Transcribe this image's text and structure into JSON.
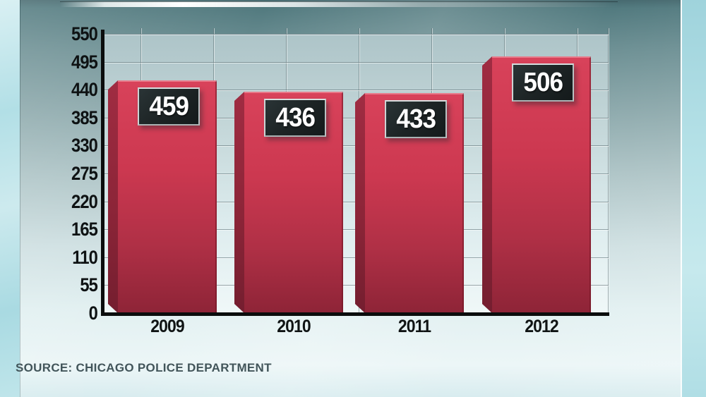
{
  "chart_data": {
    "type": "bar",
    "title": "",
    "categories": [
      "2009",
      "2010",
      "2011",
      "2012"
    ],
    "values": [
      459,
      436,
      433,
      506
    ],
    "bar_value_labels": [
      "459",
      "436",
      "433",
      "506"
    ],
    "xlabel": "",
    "ylabel": "",
    "ylim": [
      0,
      550
    ],
    "yticks": [
      0,
      55,
      110,
      165,
      220,
      275,
      330,
      385,
      440,
      495,
      550
    ],
    "grid": true,
    "legend": "none",
    "source": "SOURCE: CHICAGO POLICE DEPARTMENT",
    "colors": {
      "bar_face": "#c73750",
      "bar_side": "#8a2438",
      "value_box_bg": "#1d2425",
      "value_box_border": "#ccd3d4",
      "value_text": "#ffffff",
      "axis": "#0b0d0d",
      "tick_text": "#101414",
      "source_text": "#42555a",
      "background_top": "#527a7f",
      "background_bottom": "#ecf6f7",
      "edge_strip": "#b2dfe6"
    }
  }
}
